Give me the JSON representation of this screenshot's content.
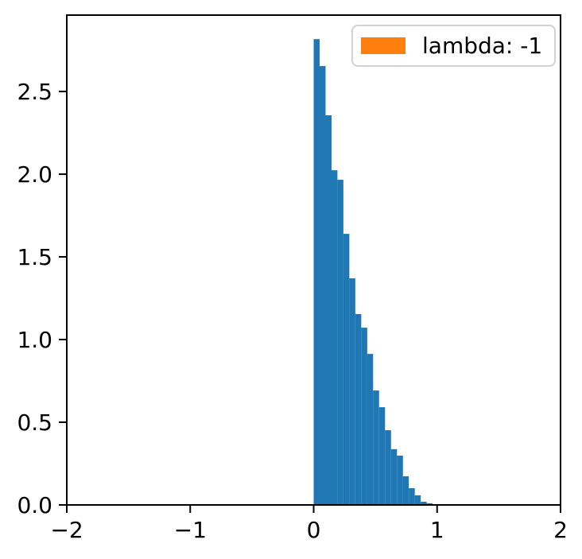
{
  "chart_data": {
    "type": "bar",
    "subtype": "histogram",
    "title": "",
    "xlabel": "",
    "ylabel": "",
    "grid": false,
    "xlim": [
      -2,
      2
    ],
    "ylim": [
      0,
      2.962
    ],
    "xticks": {
      "values": [
        -2,
        -1,
        0,
        1,
        2
      ],
      "labels": [
        "−2",
        "−1",
        "0",
        "1",
        "2"
      ]
    },
    "yticks": {
      "values": [
        0,
        0.5,
        1.0,
        1.5,
        2.0,
        2.5
      ],
      "labels": [
        "0.0",
        "0.5",
        "1.0",
        "1.5",
        "2.0",
        "2.5"
      ]
    },
    "bins": {
      "start": 0.0,
      "width": 0.0482,
      "count": 20
    },
    "densities": [
      2.817,
      2.654,
      2.356,
      2.024,
      1.966,
      1.639,
      1.37,
      1.154,
      1.072,
      0.913,
      0.692,
      0.591,
      0.452,
      0.337,
      0.298,
      0.173,
      0.101,
      0.058,
      0.019,
      0.01
    ],
    "bar_color": "#1f77b4",
    "axis_color": "#000000",
    "tick_label_color": "#000000",
    "legend": {
      "position": "upper right",
      "entries": [
        {
          "label": "lambda: -1",
          "color": "#ff7f0e"
        }
      ]
    }
  }
}
